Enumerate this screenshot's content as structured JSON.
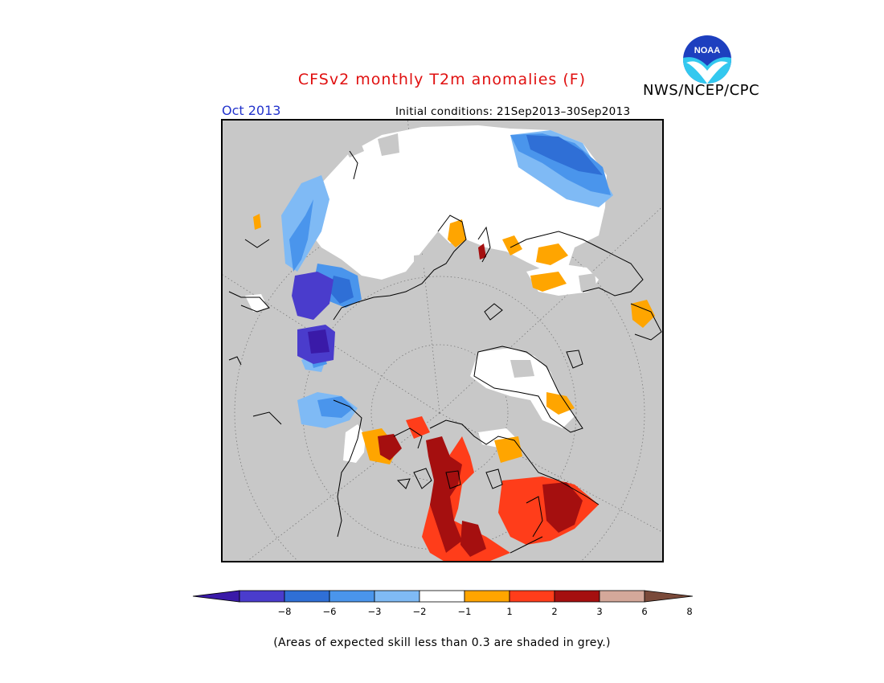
{
  "header": {
    "title": "CFSv2 monthly T2m anomalies (F)",
    "agency": "NWS/NCEP/CPC",
    "valid_month": "Oct 2013",
    "initial_conditions": "Initial conditions: 21Sep2013–30Sep2013",
    "logo_text": "NOAA"
  },
  "legend": {
    "ticks": [
      "−8",
      "−6",
      "−3",
      "−2",
      "−1",
      "1",
      "2",
      "3",
      "6",
      "8"
    ],
    "colors": [
      "#3a1aa8",
      "#4a3ccc",
      "#2f6fd6",
      "#4a95ec",
      "#7fbaf5",
      "#ffffff",
      "#ffa500",
      "#ff3d1a",
      "#a50f0f",
      "#d4a89a",
      "#7a4a3a"
    ]
  },
  "footnote": "(Areas of expected skill less than 0.3 are shaded in grey.)",
  "map": {
    "projection": "north polar stereographic",
    "background_color": "#c8c8c8"
  }
}
